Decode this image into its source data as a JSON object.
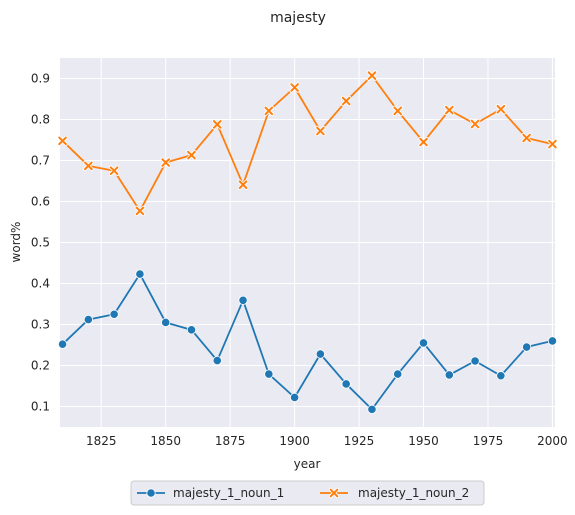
{
  "chart_data": {
    "type": "line",
    "title": "majesty",
    "xlabel": "year",
    "ylabel": "word%",
    "xlim": [
      1809,
      2001
    ],
    "ylim": [
      0.05,
      0.95
    ],
    "xticks": [
      1825,
      1850,
      1875,
      1900,
      1925,
      1950,
      1975,
      2000
    ],
    "yticks": [
      0.1,
      0.2,
      0.3,
      0.4,
      0.5,
      0.6,
      0.7,
      0.8,
      0.9
    ],
    "grid": true,
    "background": "#eaeaf2",
    "legend_position": "bottom-center",
    "x": [
      1810,
      1820,
      1830,
      1840,
      1850,
      1860,
      1870,
      1880,
      1890,
      1900,
      1910,
      1920,
      1930,
      1940,
      1950,
      1960,
      1970,
      1980,
      1990,
      2000
    ],
    "series": [
      {
        "name": "majesty_1_noun_1",
        "marker": "circle",
        "color": "#1f77b4",
        "values": [
          0.252,
          0.312,
          0.325,
          0.423,
          0.305,
          0.287,
          0.212,
          0.359,
          0.179,
          0.122,
          0.228,
          0.155,
          0.093,
          0.179,
          0.255,
          0.177,
          0.211,
          0.175,
          0.245,
          0.26
        ]
      },
      {
        "name": "majesty_1_noun_2",
        "marker": "x",
        "color": "#ff7f0e",
        "values": [
          0.748,
          0.687,
          0.675,
          0.577,
          0.695,
          0.713,
          0.788,
          0.641,
          0.821,
          0.878,
          0.772,
          0.845,
          0.907,
          0.821,
          0.745,
          0.823,
          0.789,
          0.825,
          0.755,
          0.74
        ]
      }
    ]
  }
}
